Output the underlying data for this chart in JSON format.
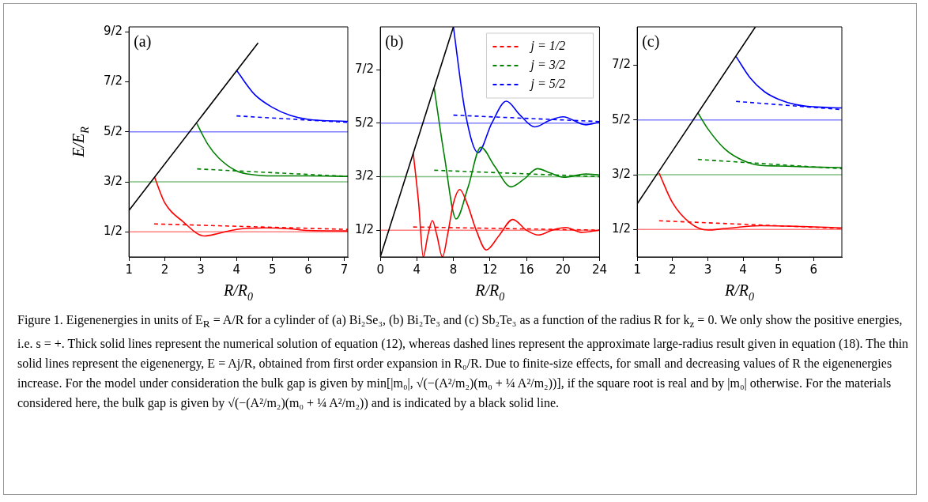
{
  "chart_data": [
    {
      "type": "line",
      "xlabel": "R/R$_{0}$",
      "ylabel": "E/E$_{R}$",
      "xlim": [
        1,
        7.1
      ],
      "ylim": [
        0,
        4.6
      ],
      "xticks": [
        1,
        2,
        3,
        4,
        5,
        6,
        7
      ],
      "yticks": [
        {
          "value": 0.5,
          "label": "1/2"
        },
        {
          "value": 1.5,
          "label": "3/2"
        },
        {
          "value": 2.5,
          "label": "5/2"
        },
        {
          "value": 3.5,
          "label": "7/2"
        },
        {
          "value": 4.5,
          "label": "9/2"
        }
      ],
      "grid": false,
      "legend": false,
      "marker": "none",
      "annotations": [
        "(a)",
        "Figure 1. Eigenenergies in units of E$_{R}$ = A/R for a cylinder of (a) Bi₂Se₃, (b) Bi₂Te₃ and (c) Sb₂Te₃ as a function of the radius R for k$_{z}$ = 0. We only show the positive energies, i.e. s = +. Thick solid lines represent the numerical solution of equation (12), whereas dashed lines represent the approximate large-radius result given in equation (18). The thin solid lines represent the eigenenergy, E = Aj/R, obtained from first order expansion in R₀/R. Due to finite-size effects, for small and decreasing values of R the eigenenergies increase. For the model under consideration the bulk gap is given by min[|m₀|, √(−(A²/m₂)(m₀ + ¼ A²/m₂))], if the square root is real and by |m₀| otherwise. For the materials considered here, the bulk gap is given by √(−(A²/m₂)(m₀ + ¼ A²/m₂)) and is indicated by a black solid line."
      ],
      "ref_lines": [
        {
          "axis": "y",
          "value": 0.5,
          "color": "#ff8080"
        },
        {
          "axis": "y",
          "value": 1.5,
          "color": "#80c080"
        },
        {
          "axis": "y",
          "value": 2.5,
          "color": "#8080ff"
        }
      ],
      "series": [
        {
          "color": "#000000",
          "x": [
            1,
            4.6
          ],
          "values": [
            0.93,
            4.28
          ]
        },
        {
          "color": "#ff0000",
          "x": [
            1.71,
            2,
            2.5,
            3.1,
            3.5,
            4,
            4.8,
            5.5,
            6,
            7.1
          ],
          "values": [
            1.6,
            1.08,
            0.71,
            0.42,
            0.47,
            0.55,
            0.58,
            0.56,
            0.53,
            0.52
          ]
        },
        {
          "color": "#ff0000",
          "line_style": "dashed",
          "x": [
            1.7,
            7.1
          ],
          "values": [
            0.66,
            0.55
          ]
        },
        {
          "color": "#008000",
          "x": [
            2.89,
            3.2,
            3.5,
            4,
            4.5,
            5,
            6,
            7.1
          ],
          "values": [
            2.67,
            2.25,
            1.98,
            1.72,
            1.64,
            1.62,
            1.62,
            1.61
          ]
        },
        {
          "color": "#008000",
          "line_style": "dashed",
          "x": [
            2.9,
            7.1
          ],
          "values": [
            1.76,
            1.61
          ]
        },
        {
          "color": "#0000ff",
          "x": [
            4,
            4.5,
            5,
            5.5,
            6,
            7.1
          ],
          "values": [
            3.73,
            3.25,
            2.99,
            2.83,
            2.75,
            2.71
          ]
        },
        {
          "color": "#0000ff",
          "line_style": "dashed",
          "x": [
            4,
            7.1
          ],
          "values": [
            2.82,
            2.69
          ]
        }
      ]
    },
    {
      "type": "line",
      "xlabel": "R/R$_{0}$",
      "xlim": [
        0,
        24
      ],
      "ylim": [
        0,
        4.3
      ],
      "xticks": [
        0,
        4,
        8,
        12,
        16,
        20,
        24
      ],
      "yticks": [
        {
          "value": 0.5,
          "label": "1/2"
        },
        {
          "value": 1.5,
          "label": "3/2"
        },
        {
          "value": 2.5,
          "label": "5/2"
        },
        {
          "value": 3.5,
          "label": "7/2"
        }
      ],
      "grid": false,
      "legend": "top right",
      "marker": "none",
      "annotations": [
        "(b)"
      ],
      "ref_lines": [
        {
          "axis": "y",
          "value": 0.5,
          "color": "#ff8080"
        },
        {
          "axis": "y",
          "value": 1.5,
          "color": "#80c080"
        },
        {
          "axis": "y",
          "value": 2.5,
          "color": "#8080ff"
        }
      ],
      "series": [
        {
          "color": "#000000",
          "x": [
            0,
            8
          ],
          "values": [
            0,
            4.3
          ]
        },
        {
          "color": "#ff0000",
          "x": [
            3.6,
            4.2,
            4.7,
            5.2,
            5.7,
            6.2,
            6.8,
            7.4,
            8,
            8.7,
            9.5,
            10.5,
            11.6,
            13,
            14.5,
            16,
            17.3,
            18.8,
            20.3,
            22,
            24
          ],
          "values": [
            1.95,
            1.0,
            0,
            0.4,
            0.68,
            0.4,
            0,
            0.45,
            1.0,
            1.26,
            1.0,
            0.5,
            0.13,
            0.4,
            0.7,
            0.5,
            0.41,
            0.5,
            0.55,
            0.46,
            0.5
          ]
        },
        {
          "name": "j = 1/2",
          "color": "#ff0000",
          "line_style": "dashed",
          "x": [
            3.6,
            24
          ],
          "values": [
            0.56,
            0.5
          ]
        },
        {
          "color": "#008000",
          "x": [
            5.9,
            7,
            8.3,
            9.6,
            11,
            12.5,
            14.3,
            15.7,
            17.2,
            18.6,
            20.1,
            22.5,
            24
          ],
          "values": [
            3.15,
            1.9,
            0.71,
            1.3,
            2.05,
            1.7,
            1.31,
            1.45,
            1.65,
            1.57,
            1.49,
            1.55,
            1.53
          ]
        },
        {
          "name": "j = 3/2",
          "color": "#008000",
          "line_style": "dashed",
          "x": [
            5.9,
            24
          ],
          "values": [
            1.62,
            1.5
          ]
        },
        {
          "color": "#0000ff",
          "x": [
            8,
            9.3,
            10.7,
            12.2,
            13.8,
            15.3,
            16.9,
            18.5,
            20,
            22.5,
            24
          ],
          "values": [
            4.3,
            2.7,
            1.95,
            2.5,
            2.91,
            2.65,
            2.43,
            2.55,
            2.62,
            2.47,
            2.52
          ]
        },
        {
          "name": "j = 5/2",
          "color": "#0000ff",
          "line_style": "dashed",
          "x": [
            8,
            24
          ],
          "values": [
            2.65,
            2.53
          ]
        }
      ]
    },
    {
      "type": "line",
      "xlabel": "R/R$_{0}$",
      "xlim": [
        1,
        6.8
      ],
      "ylim": [
        0,
        4.2
      ],
      "xticks": [
        1,
        2,
        3,
        4,
        5,
        6
      ],
      "yticks": [
        {
          "value": 0.5,
          "label": "1/2"
        },
        {
          "value": 1.5,
          "label": "3/2"
        },
        {
          "value": 2.5,
          "label": "5/2"
        },
        {
          "value": 3.5,
          "label": "7/2"
        }
      ],
      "grid": false,
      "legend": false,
      "marker": "none",
      "annotations": [
        "(c)"
      ],
      "ref_lines": [
        {
          "axis": "y",
          "value": 0.5,
          "color": "#ff8080"
        },
        {
          "axis": "y",
          "value": 1.5,
          "color": "#80c080"
        },
        {
          "axis": "y",
          "value": 2.5,
          "color": "#8080ff"
        }
      ],
      "series": [
        {
          "color": "#000000",
          "x": [
            1,
            4.35
          ],
          "values": [
            0.97,
            4.2
          ]
        },
        {
          "color": "#ff0000",
          "x": [
            1.62,
            2,
            2.5,
            3,
            3.5,
            4.5,
            5.5,
            6.8
          ],
          "values": [
            1.53,
            0.99,
            0.62,
            0.49,
            0.52,
            0.57,
            0.56,
            0.53
          ]
        },
        {
          "color": "#ff0000",
          "line_style": "dashed",
          "x": [
            1.62,
            6.8
          ],
          "values": [
            0.66,
            0.52
          ]
        },
        {
          "color": "#008000",
          "x": [
            2.72,
            3,
            3.5,
            4,
            4.5,
            5,
            6,
            6.8
          ],
          "values": [
            2.63,
            2.34,
            1.96,
            1.76,
            1.67,
            1.66,
            1.64,
            1.63
          ]
        },
        {
          "color": "#008000",
          "line_style": "dashed",
          "x": [
            2.72,
            6.8
          ],
          "values": [
            1.78,
            1.61
          ]
        },
        {
          "color": "#0000ff",
          "x": [
            3.8,
            4.2,
            4.6,
            5,
            5.5,
            6,
            6.8
          ],
          "values": [
            3.66,
            3.27,
            3.02,
            2.88,
            2.78,
            2.74,
            2.72
          ]
        },
        {
          "color": "#0000ff",
          "line_style": "dashed",
          "x": [
            3.8,
            6.8
          ],
          "values": [
            2.84,
            2.69
          ]
        }
      ]
    }
  ]
}
